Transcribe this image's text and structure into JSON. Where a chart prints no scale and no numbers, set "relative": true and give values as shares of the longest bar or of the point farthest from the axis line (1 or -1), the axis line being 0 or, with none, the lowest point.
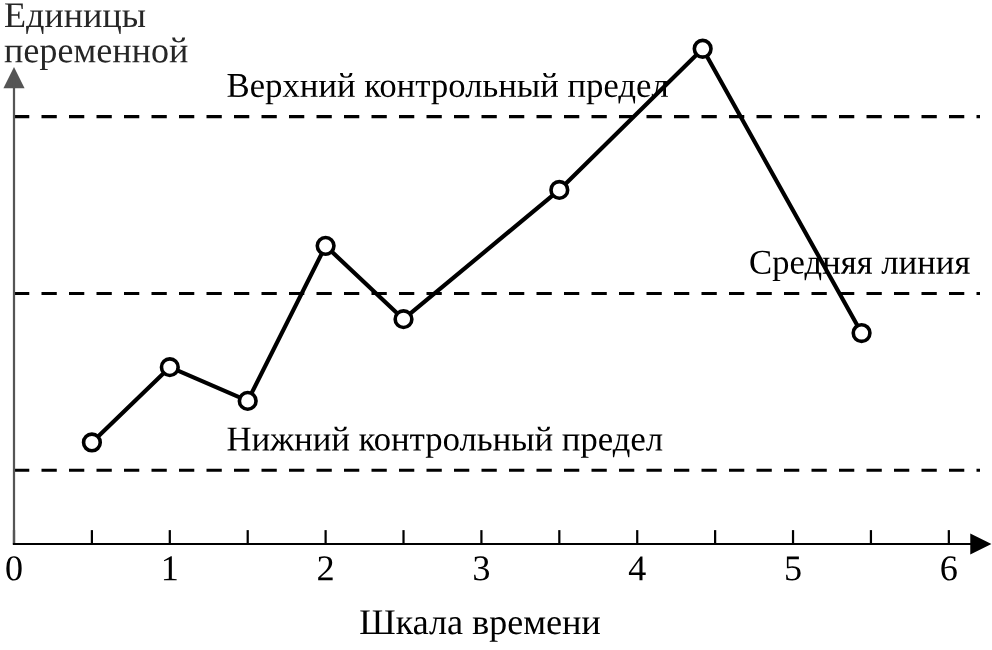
{
  "chart_data": {
    "type": "line",
    "relative": true,
    "xlabel": "Шкала времени",
    "ylabel": "Единицы\nпеременной",
    "x": [
      0.5,
      1.0,
      1.5,
      2.0,
      2.5,
      3.5,
      4.42,
      5.44
    ],
    "series": [
      {
        "color": "#000000",
        "values": [
          0.205,
          0.357,
          0.289,
          0.602,
          0.454,
          0.715,
          1,
          0.426
        ]
      }
    ],
    "xlim": [
      0,
      6.2
    ],
    "xticks": [
      0,
      {
        "value": 0.5,
        "label": null
      },
      1,
      {
        "value": 1.5,
        "label": null
      },
      2,
      {
        "value": 2.5,
        "label": null
      },
      3,
      {
        "value": 3.5,
        "label": null
      },
      4,
      {
        "value": 4.5,
        "label": null
      },
      5,
      {
        "value": 5.5,
        "label": null
      },
      6
    ],
    "ref_lines": [
      {
        "axis": "y",
        "value": 0.863,
        "label": "Верхний контрольный предел",
        "color": "#000000",
        "line_style": "dashed"
      },
      {
        "axis": "y",
        "value": 0.506,
        "label": "Средняя линия",
        "color": "#000000",
        "line_style": "dashed"
      },
      {
        "axis": "y",
        "value": 0.149,
        "label": "Нижний контрольный предел",
        "color": "#000000",
        "line_style": "dashed"
      }
    ],
    "marker": "circle",
    "line_style": "solid",
    "grid": false,
    "legend": false
  }
}
